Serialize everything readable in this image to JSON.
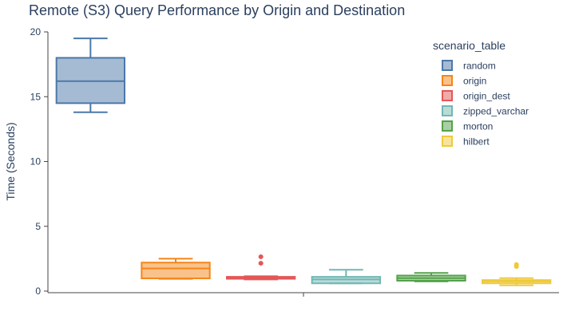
{
  "chart_data": {
    "type": "box",
    "title": "Remote (S3) Query Performance by Origin and Destination",
    "xlabel": "",
    "ylabel": "Time (Seconds)",
    "ylim": [
      0,
      20
    ],
    "yticks": [
      0,
      5,
      10,
      15,
      20
    ],
    "legend_title": "scenario_table",
    "legend_position": "top-right",
    "grid": false,
    "series": [
      {
        "name": "random",
        "color": "#4c78a8",
        "min": 13.8,
        "q1": 14.5,
        "median": 16.2,
        "q3": 18.0,
        "max": 19.5,
        "outliers": []
      },
      {
        "name": "origin",
        "color": "#f58518",
        "min": 0.95,
        "q1": 0.98,
        "median": 1.75,
        "q3": 2.2,
        "max": 2.5,
        "outliers": []
      },
      {
        "name": "origin_dest",
        "color": "#e45756",
        "min": 0.9,
        "q1": 0.95,
        "median": 1.0,
        "q3": 1.1,
        "max": 1.15,
        "outliers": [
          2.15,
          2.65
        ]
      },
      {
        "name": "zipped_varchar",
        "color": "#72b7b2",
        "min": 0.6,
        "q1": 0.6,
        "median": 0.9,
        "q3": 1.1,
        "max": 1.65,
        "outliers": []
      },
      {
        "name": "morton",
        "color": "#54a24b",
        "min": 0.75,
        "q1": 0.8,
        "median": 1.0,
        "q3": 1.2,
        "max": 1.4,
        "outliers": []
      },
      {
        "name": "hilbert",
        "color": "#eeca3b",
        "min": 0.45,
        "q1": 0.6,
        "median": 0.75,
        "q3": 0.85,
        "max": 1.0,
        "outliers": [
          1.9,
          2.05
        ]
      }
    ]
  }
}
